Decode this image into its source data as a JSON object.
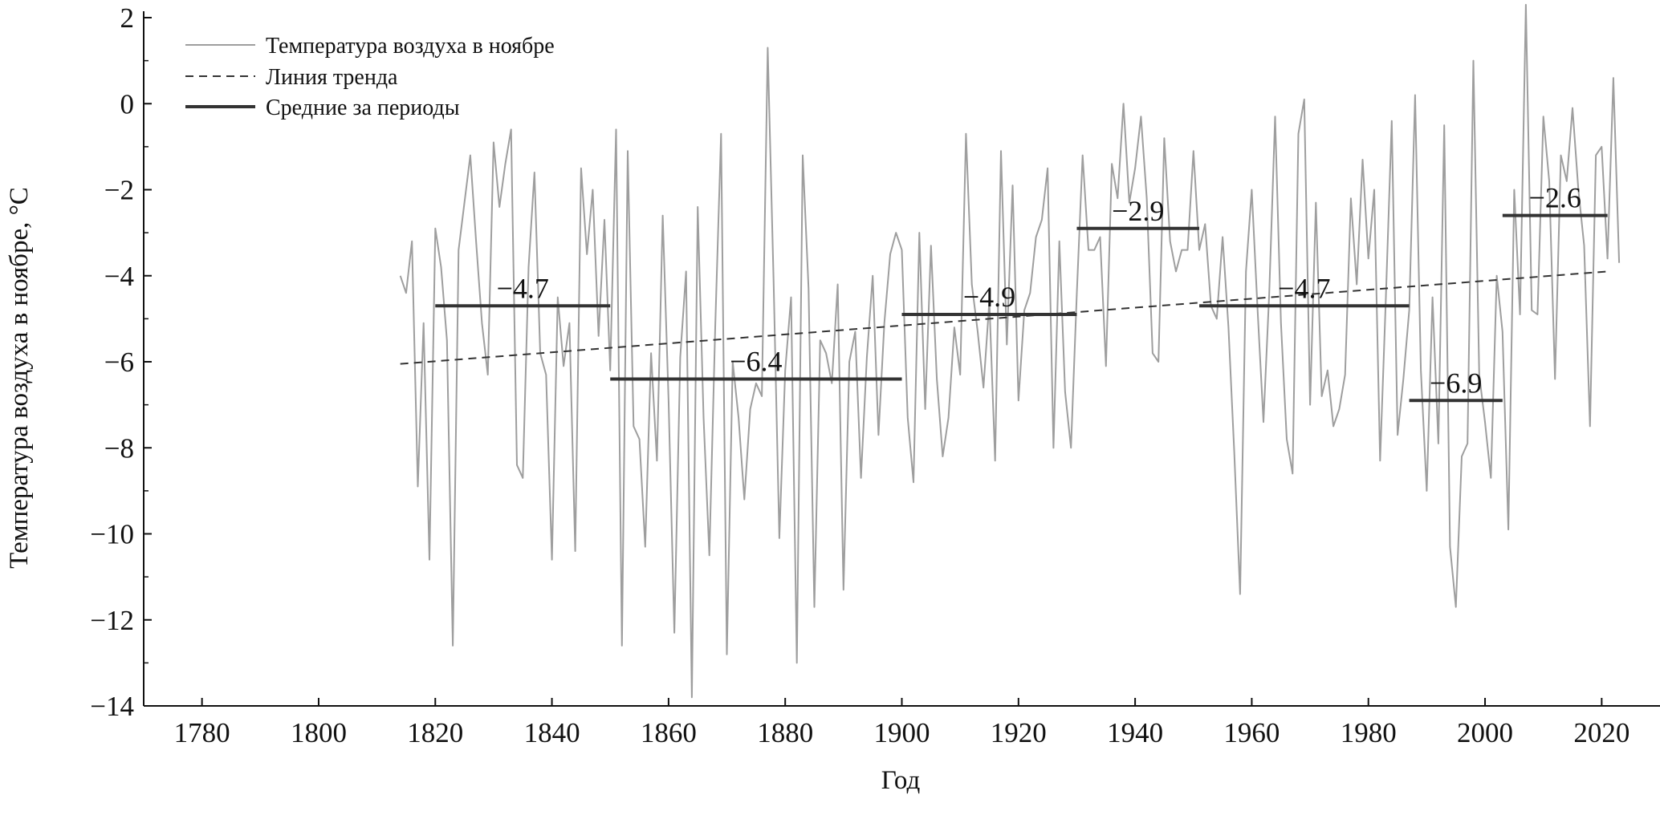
{
  "chart_data": {
    "type": "line",
    "title": "",
    "xlabel": "Год",
    "ylabel": "Температура воздуха в ноябре, °C",
    "xlim": [
      1770,
      2030
    ],
    "ylim": [
      -14,
      2
    ],
    "x_ticks": [
      1780,
      1800,
      1820,
      1840,
      1860,
      1880,
      1900,
      1920,
      1940,
      1960,
      1980,
      2000,
      2020
    ],
    "y_ticks": [
      2,
      0,
      -2,
      -4,
      -6,
      -8,
      -10,
      -12,
      -14
    ],
    "x_tick_labels": [
      "1780",
      "1800",
      "1820",
      "1840",
      "1860",
      "1880",
      "1900",
      "1920",
      "1940",
      "1960",
      "1980",
      "2000",
      "2020"
    ],
    "y_tick_labels": [
      "2",
      "0",
      "−2",
      "−4",
      "−6",
      "−8",
      "−10",
      "−12",
      "−14"
    ],
    "grid": false,
    "legend_position": "top-left",
    "legend": [
      {
        "label": "Температура воздуха в ноябре",
        "style": "thin-gray"
      },
      {
        "label": "Линия тренда",
        "style": "dashed"
      },
      {
        "label": "Средние за периоды",
        "style": "thick-dark"
      }
    ],
    "colors": {
      "series": "#9e9e9e",
      "trend": "#333333",
      "periods": "#333333",
      "axis": "#111111"
    },
    "series": [
      {
        "name": "Температура воздуха в ноябре",
        "x_start": 1814,
        "values": [
          -4.0,
          -4.4,
          -3.2,
          -8.9,
          -5.1,
          -10.6,
          -2.9,
          -3.8,
          -5.5,
          -12.6,
          -3.4,
          -2.3,
          -1.2,
          -3.2,
          -5.1,
          -6.3,
          -0.9,
          -2.4,
          -1.4,
          -0.6,
          -8.4,
          -8.7,
          -3.8,
          -1.6,
          -5.8,
          -6.3,
          -10.6,
          -4.5,
          -6.1,
          -5.1,
          -10.4,
          -1.5,
          -3.5,
          -2.0,
          -5.4,
          -2.7,
          -6.2,
          -0.6,
          -12.6,
          -1.1,
          -7.5,
          -7.8,
          -10.3,
          -5.8,
          -8.3,
          -2.6,
          -6.9,
          -12.3,
          -5.9,
          -3.9,
          -13.8,
          -2.4,
          -7.3,
          -10.5,
          -5.2,
          -0.7,
          -12.8,
          -6.0,
          -7.3,
          -9.2,
          -7.1,
          -6.5,
          -6.8,
          1.3,
          -4.1,
          -10.1,
          -6.2,
          -4.5,
          -13.0,
          -1.2,
          -4.3,
          -11.7,
          -5.5,
          -5.8,
          -6.5,
          -4.2,
          -11.3,
          -6.0,
          -5.3,
          -8.7,
          -5.9,
          -4.0,
          -7.7,
          -5.1,
          -3.5,
          -3.0,
          -3.4,
          -7.3,
          -8.8,
          -3.0,
          -7.1,
          -3.3,
          -6.4,
          -8.2,
          -7.3,
          -5.2,
          -6.3,
          -0.7,
          -4.2,
          -5.3,
          -6.6,
          -4.6,
          -8.3,
          -1.1,
          -5.6,
          -1.9,
          -6.9,
          -4.8,
          -4.4,
          -3.1,
          -2.7,
          -1.5,
          -8.0,
          -3.2,
          -6.7,
          -8.0,
          -4.4,
          -1.2,
          -3.4,
          -3.4,
          -3.1,
          -6.1,
          -1.4,
          -2.2,
          0.0,
          -2.3,
          -1.5,
          -0.3,
          -2.2,
          -5.8,
          -6.0,
          -0.8,
          -3.2,
          -3.9,
          -3.4,
          -3.4,
          -1.1,
          -3.4,
          -2.8,
          -4.7,
          -5.0,
          -3.1,
          -5.2,
          -8.1,
          -11.4,
          -3.9,
          -2.0,
          -4.8,
          -7.4,
          -4.4,
          -0.3,
          -5.1,
          -7.8,
          -8.6,
          -0.7,
          0.1,
          -7.0,
          -2.3,
          -6.8,
          -6.2,
          -7.5,
          -7.1,
          -6.3,
          -2.2,
          -4.2,
          -1.3,
          -3.6,
          -2.0,
          -8.3,
          -4.5,
          -0.4,
          -7.7,
          -6.4,
          -4.8,
          0.2,
          -6.2,
          -9.0,
          -4.5,
          -7.9,
          -0.5,
          -10.3,
          -11.7,
          -8.2,
          -7.9,
          1.0,
          -6.3,
          -7.4,
          -8.7,
          -4.0,
          -5.3,
          -9.9,
          -2.0,
          -4.9,
          2.3,
          -4.8,
          -4.9,
          -0.3,
          -1.8,
          -6.4,
          -1.2,
          -1.8,
          -0.1,
          -2.0,
          -3.3,
          -7.5,
          -1.2,
          -1.0,
          -3.6,
          0.6,
          -3.7
        ]
      }
    ],
    "trend_line": {
      "name": "Линия тренда",
      "x": [
        1814,
        2021
      ],
      "y": [
        -6.05,
        -3.9
      ]
    },
    "period_means": [
      {
        "start": 1820,
        "end": 1850,
        "value": -4.7,
        "label": "−4.7"
      },
      {
        "start": 1850,
        "end": 1900,
        "value": -6.4,
        "label": "−6.4"
      },
      {
        "start": 1900,
        "end": 1930,
        "value": -4.9,
        "label": "−4.9"
      },
      {
        "start": 1930,
        "end": 1951,
        "value": -2.9,
        "label": "−2.9"
      },
      {
        "start": 1951,
        "end": 1987,
        "value": -4.7,
        "label": "−4.7"
      },
      {
        "start": 1987,
        "end": 2003,
        "value": -6.9,
        "label": "−6.9"
      },
      {
        "start": 2003,
        "end": 2021,
        "value": -2.6,
        "label": "−2.6"
      }
    ]
  }
}
